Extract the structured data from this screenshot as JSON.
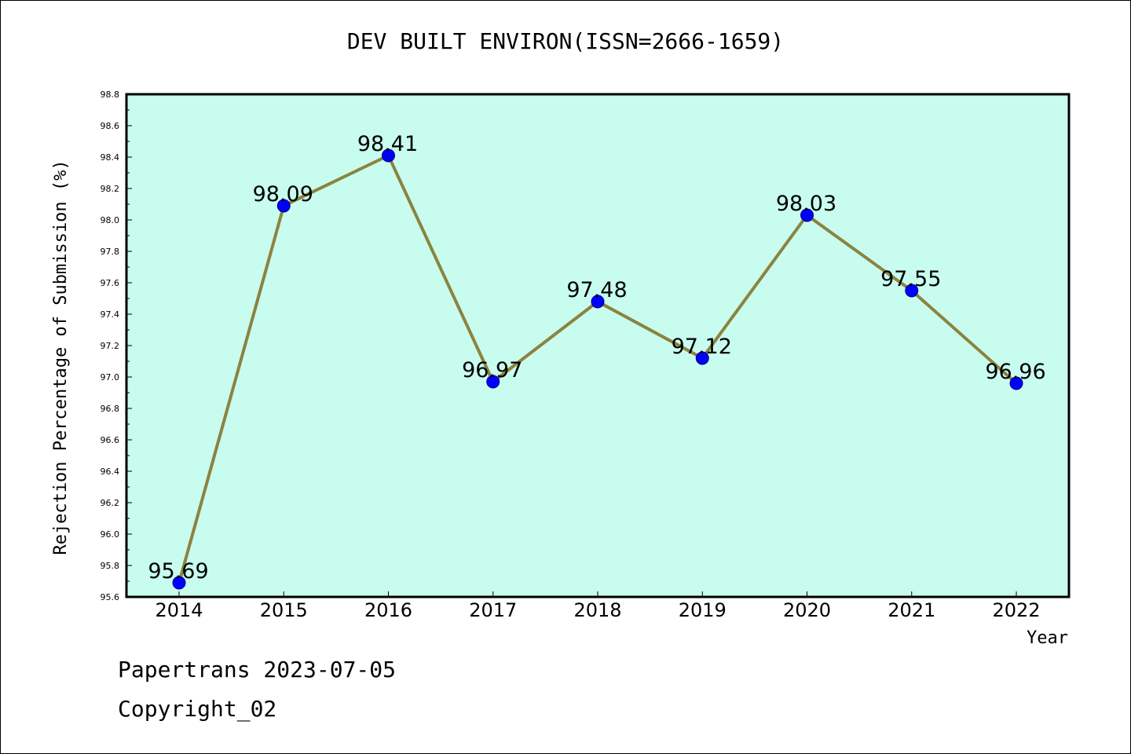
{
  "chart_data": {
    "type": "line",
    "title": "DEV BUILT ENVIRON(ISSN=2666-1659)",
    "xlabel": "Year",
    "ylabel": "Rejection Percentage of Submission (%)",
    "categories": [
      "2014",
      "2015",
      "2016",
      "2017",
      "2018",
      "2019",
      "2020",
      "2021",
      "2022"
    ],
    "values": [
      95.69,
      98.09,
      98.41,
      96.97,
      97.48,
      97.12,
      98.03,
      97.55,
      96.96
    ],
    "data_labels": [
      "95.69",
      "98.09",
      "98.41",
      "96.97",
      "97.48",
      "97.12",
      "98.03",
      "97.55",
      "96.96"
    ],
    "ylim": [
      95.6,
      98.8
    ],
    "yticks": [
      "95.6",
      "95.8",
      "96.0",
      "96.2",
      "96.4",
      "96.6",
      "96.8",
      "97.0",
      "97.2",
      "97.4",
      "97.6",
      "97.8",
      "98.0",
      "98.2",
      "98.4",
      "98.6",
      "98.8"
    ],
    "grid": false,
    "colors": {
      "plot_background": "#c8fcee",
      "line": "#8b8340",
      "marker": "#0000ff",
      "marker_edge": "#000080"
    }
  },
  "footer": {
    "line1": "Papertrans 2023-07-05",
    "line2": "Copyright_02"
  }
}
